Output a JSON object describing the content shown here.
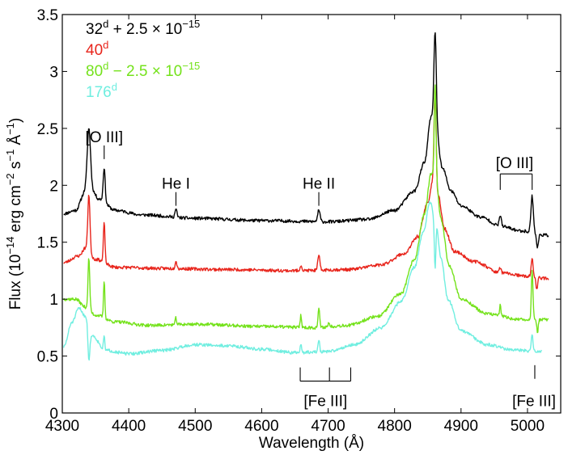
{
  "chart_data": {
    "type": "line",
    "xlabel": "Wavelength (Å)",
    "ylabel": {
      "main": "Flux (10",
      "exp1": "−14",
      "mid1": " erg cm",
      "exp2": "−2",
      "mid2": " s",
      "exp3": "−1",
      "mid3": " Å",
      "exp4": "−1",
      "end": ")"
    },
    "xlim": [
      4300,
      5050
    ],
    "ylim": [
      0,
      3.5
    ],
    "xticks": [
      4300,
      4400,
      4500,
      4600,
      4700,
      4800,
      4900,
      5000
    ],
    "yticks": [
      0,
      0.5,
      1,
      1.5,
      2,
      2.5,
      3,
      3.5
    ],
    "ytick_labels": [
      "0",
      "0.5",
      "1",
      "1.5",
      "2",
      "2.5",
      "3",
      "3.5"
    ],
    "legend": [
      {
        "day": "32",
        "sup": "d",
        "suffix": " + 2.5 × 10",
        "exp": "−15",
        "color": "#000000"
      },
      {
        "day": "40",
        "sup": "d",
        "suffix": "",
        "exp": "",
        "color": "#e8251c"
      },
      {
        "day": "80",
        "sup": "d",
        "suffix": " − 2.5 × 10",
        "exp": "−15",
        "color": "#74e21b"
      },
      {
        "day": "176",
        "sup": "d",
        "suffix": "",
        "exp": "",
        "color": "#70eee0"
      }
    ],
    "series": [
      {
        "name": "32d + 2.5e-15",
        "color": "#000000",
        "x_range": [
          4302,
          5032
        ],
        "seed": 11,
        "continuum": [
          [
            4302,
            1.75
          ],
          [
            4320,
            1.78
          ],
          [
            4335,
            1.95
          ],
          [
            4345,
            1.95
          ],
          [
            4355,
            1.88
          ],
          [
            4380,
            1.78
          ],
          [
            4420,
            1.74
          ],
          [
            4500,
            1.71
          ],
          [
            4600,
            1.69
          ],
          [
            4700,
            1.68
          ],
          [
            4760,
            1.7
          ],
          [
            4800,
            1.78
          ],
          [
            4830,
            1.95
          ],
          [
            4845,
            2.2
          ],
          [
            4855,
            2.6
          ],
          [
            4863,
            2.45
          ],
          [
            4872,
            2.15
          ],
          [
            4885,
            1.95
          ],
          [
            4900,
            1.82
          ],
          [
            4930,
            1.72
          ],
          [
            4960,
            1.64
          ],
          [
            4990,
            1.6
          ],
          [
            5032,
            1.56
          ]
        ],
        "lines": [
          [
            4340,
            0.55,
            2.5
          ],
          [
            4363,
            0.3,
            1.5
          ],
          [
            4471,
            0.07,
            1.5
          ],
          [
            4686,
            0.1,
            1.8
          ],
          [
            4861,
            0.88,
            1.8
          ],
          [
            4959,
            0.1,
            1.5
          ],
          [
            5007,
            0.32,
            1.8
          ],
          [
            5015,
            -0.12,
            1.5
          ]
        ]
      },
      {
        "name": "40d",
        "color": "#e8251c",
        "x_range": [
          4302,
          5032
        ],
        "seed": 23,
        "continuum": [
          [
            4302,
            1.32
          ],
          [
            4325,
            1.38
          ],
          [
            4335,
            1.45
          ],
          [
            4350,
            1.35
          ],
          [
            4380,
            1.28
          ],
          [
            4450,
            1.27
          ],
          [
            4550,
            1.26
          ],
          [
            4650,
            1.25
          ],
          [
            4730,
            1.26
          ],
          [
            4780,
            1.3
          ],
          [
            4815,
            1.4
          ],
          [
            4835,
            1.55
          ],
          [
            4850,
            1.85
          ],
          [
            4858,
            2.05
          ],
          [
            4866,
            1.9
          ],
          [
            4875,
            1.62
          ],
          [
            4890,
            1.42
          ],
          [
            4920,
            1.33
          ],
          [
            4960,
            1.23
          ],
          [
            5000,
            1.2
          ],
          [
            5032,
            1.18
          ]
        ],
        "lines": [
          [
            4340,
            0.5,
            1.6
          ],
          [
            4363,
            0.35,
            1.2
          ],
          [
            4471,
            0.07,
            1.3
          ],
          [
            4659,
            0.05,
            1.3
          ],
          [
            4686,
            0.13,
            1.5
          ],
          [
            4861,
            0.85,
            1.5
          ],
          [
            4959,
            0.05,
            1.3
          ],
          [
            5007,
            0.15,
            1.5
          ],
          [
            5014,
            -0.1,
            1.3
          ]
        ]
      },
      {
        "name": "80d - 2.5e-15",
        "color": "#74e21b",
        "x_range": [
          4302,
          5032
        ],
        "seed": 37,
        "continuum": [
          [
            4302,
            1.0
          ],
          [
            4320,
            1.0
          ],
          [
            4335,
            0.93
          ],
          [
            4350,
            0.86
          ],
          [
            4380,
            0.8
          ],
          [
            4430,
            0.77
          ],
          [
            4500,
            0.78
          ],
          [
            4600,
            0.76
          ],
          [
            4680,
            0.75
          ],
          [
            4730,
            0.77
          ],
          [
            4775,
            0.85
          ],
          [
            4810,
            1.05
          ],
          [
            4830,
            1.35
          ],
          [
            4845,
            1.75
          ],
          [
            4855,
            2.1
          ],
          [
            4862,
            2.05
          ],
          [
            4870,
            1.7
          ],
          [
            4882,
            1.3
          ],
          [
            4900,
            1.0
          ],
          [
            4940,
            0.87
          ],
          [
            4990,
            0.82
          ],
          [
            5032,
            0.82
          ]
        ],
        "lines": [
          [
            4340,
            0.45,
            1.3
          ],
          [
            4363,
            0.33,
            1.0
          ],
          [
            4471,
            0.06,
            1.0
          ],
          [
            4659,
            0.11,
            1.0
          ],
          [
            4686,
            0.17,
            1.2
          ],
          [
            4701,
            0.04,
            1.0
          ],
          [
            4861,
            0.85,
            1.3
          ],
          [
            4959,
            0.09,
            1.1
          ],
          [
            5007,
            0.45,
            1.2
          ],
          [
            5015,
            -0.12,
            1.0
          ]
        ]
      },
      {
        "name": "176d",
        "color": "#70eee0",
        "x_range": [
          4302,
          5022
        ],
        "seed": 51,
        "continuum": [
          [
            4302,
            0.58
          ],
          [
            4315,
            0.8
          ],
          [
            4325,
            0.92
          ],
          [
            4335,
            0.85
          ],
          [
            4345,
            0.68
          ],
          [
            4365,
            0.55
          ],
          [
            4400,
            0.52
          ],
          [
            4450,
            0.55
          ],
          [
            4500,
            0.6
          ],
          [
            4550,
            0.59
          ],
          [
            4600,
            0.56
          ],
          [
            4650,
            0.53
          ],
          [
            4700,
            0.54
          ],
          [
            4740,
            0.6
          ],
          [
            4780,
            0.75
          ],
          [
            4810,
            0.98
          ],
          [
            4830,
            1.28
          ],
          [
            4843,
            1.58
          ],
          [
            4853,
            1.85
          ],
          [
            4862,
            1.7
          ],
          [
            4870,
            1.35
          ],
          [
            4880,
            1.0
          ],
          [
            4900,
            0.72
          ],
          [
            4940,
            0.6
          ],
          [
            4980,
            0.55
          ],
          [
            5022,
            0.54
          ]
        ],
        "lines": [
          [
            4340,
            -0.3,
            1.5
          ],
          [
            4363,
            0.12,
            1.0
          ],
          [
            4659,
            0.07,
            1.0
          ],
          [
            4686,
            0.1,
            1.2
          ],
          [
            4861,
            -0.45,
            1.2
          ],
          [
            5007,
            0.15,
            1.2
          ]
        ]
      }
    ],
    "annotations": [
      {
        "id": "oiii-4363",
        "text": "[O III]",
        "x": 4363,
        "tick_y0": 2.23,
        "tick_y1": 2.35,
        "text_y": 2.38
      },
      {
        "id": "hei-4471",
        "text": "He I",
        "x": 4471,
        "tick_y0": 1.82,
        "tick_y1": 1.94,
        "text_y": 1.97
      },
      {
        "id": "heii-4686",
        "text": "He II",
        "x": 4686,
        "tick_y0": 1.82,
        "tick_y1": 1.94,
        "text_y": 1.97
      },
      {
        "id": "oiii-doublet",
        "text": "[O III]",
        "x1": 4959,
        "x2": 5007,
        "bracket_y": 2.1,
        "drop_y": 1.96,
        "text_y": 2.15
      },
      {
        "id": "feiii-group",
        "text": "[Fe III]",
        "xs": [
          4658,
          4702,
          4734
        ],
        "bracket_y": 0.28,
        "top_y": 0.4,
        "text_y": 0.06
      },
      {
        "id": "feiii-5011",
        "text": "[Fe III]",
        "x": 5011,
        "tick_y0": 0.3,
        "tick_y1": 0.42,
        "text_y": 0.06
      }
    ]
  }
}
